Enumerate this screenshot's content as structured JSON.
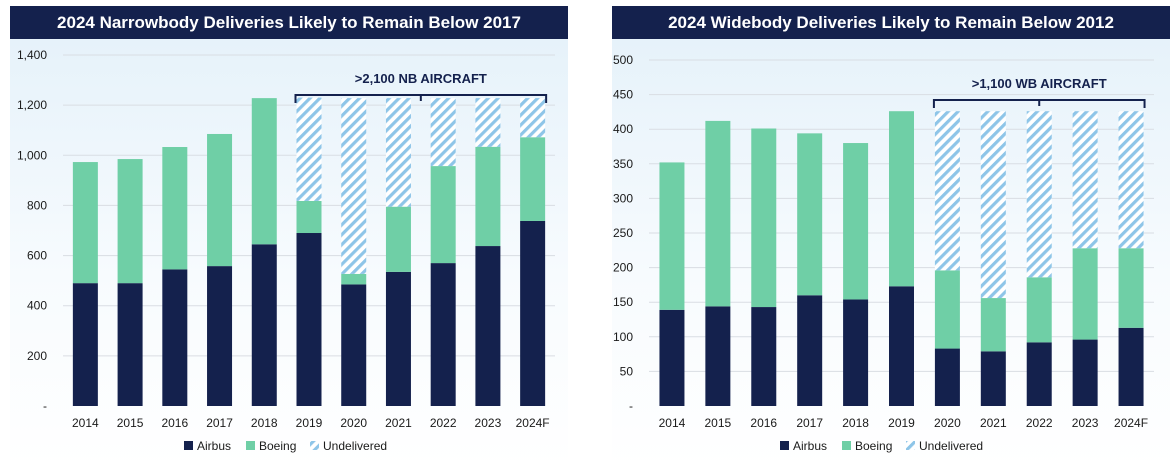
{
  "colors": {
    "airbus": "#14214d",
    "boeing": "#6fcfa6",
    "undelivered": "#8ec5e8",
    "title_bg": "#14214d",
    "grid": "#d9dde3",
    "text": "#1a1a1a"
  },
  "chart_data": [
    {
      "type": "bar",
      "stacked": true,
      "title": "2024 Narrowbody Deliveries Likely to Remain Below 2017",
      "categories": [
        "2014",
        "2015",
        "2016",
        "2017",
        "2018",
        "2019",
        "2020",
        "2021",
        "2022",
        "2023",
        "2024F"
      ],
      "y_ticks": [
        0,
        200,
        400,
        600,
        800,
        1000,
        1200,
        1400
      ],
      "y_tick_labels": [
        "-",
        "200",
        "400",
        "600",
        "800",
        "1,000",
        "1,200",
        "1,400"
      ],
      "ylim": [
        0,
        1400
      ],
      "grid": true,
      "legend_position": "bottom",
      "series": [
        {
          "name": "Airbus",
          "values": [
            490,
            490,
            545,
            558,
            645,
            690,
            485,
            535,
            570,
            638,
            738
          ]
        },
        {
          "name": "Boeing",
          "values": [
            483,
            495,
            488,
            527,
            583,
            128,
            42,
            260,
            387,
            396,
            334
          ]
        },
        {
          "name": "Undelivered",
          "values": [
            0,
            0,
            0,
            0,
            0,
            412,
            701,
            433,
            271,
            194,
            156
          ]
        }
      ],
      "annotation": {
        "text": ">2,100 NB AIRCRAFT",
        "from_category": "2019",
        "to_category": "2024F"
      }
    },
    {
      "type": "bar",
      "stacked": true,
      "title": "2024 Widebody Deliveries Likely to Remain Below 2012",
      "categories": [
        "2014",
        "2015",
        "2016",
        "2017",
        "2018",
        "2019",
        "2020",
        "2021",
        "2022",
        "2023",
        "2024F"
      ],
      "y_ticks": [
        0,
        50,
        100,
        150,
        200,
        250,
        300,
        350,
        400,
        450,
        500
      ],
      "y_tick_labels": [
        "-",
        "50",
        "100",
        "150",
        "200",
        "250",
        "300",
        "350",
        "400",
        "450",
        "500"
      ],
      "ylim": [
        0,
        500
      ],
      "grid": true,
      "legend_position": "bottom",
      "series": [
        {
          "name": "Airbus",
          "values": [
            139,
            144,
            143,
            160,
            154,
            173,
            83,
            79,
            92,
            96,
            113
          ]
        },
        {
          "name": "Boeing",
          "values": [
            213,
            268,
            258,
            234,
            226,
            253,
            113,
            77,
            94,
            132,
            115
          ]
        },
        {
          "name": "Undelivered",
          "values": [
            0,
            0,
            0,
            0,
            0,
            0,
            230,
            270,
            240,
            198,
            198
          ]
        }
      ],
      "annotation": {
        "text": ">1,100 WB AIRCRAFT",
        "from_category": "2020",
        "to_category": "2024F"
      }
    }
  ]
}
